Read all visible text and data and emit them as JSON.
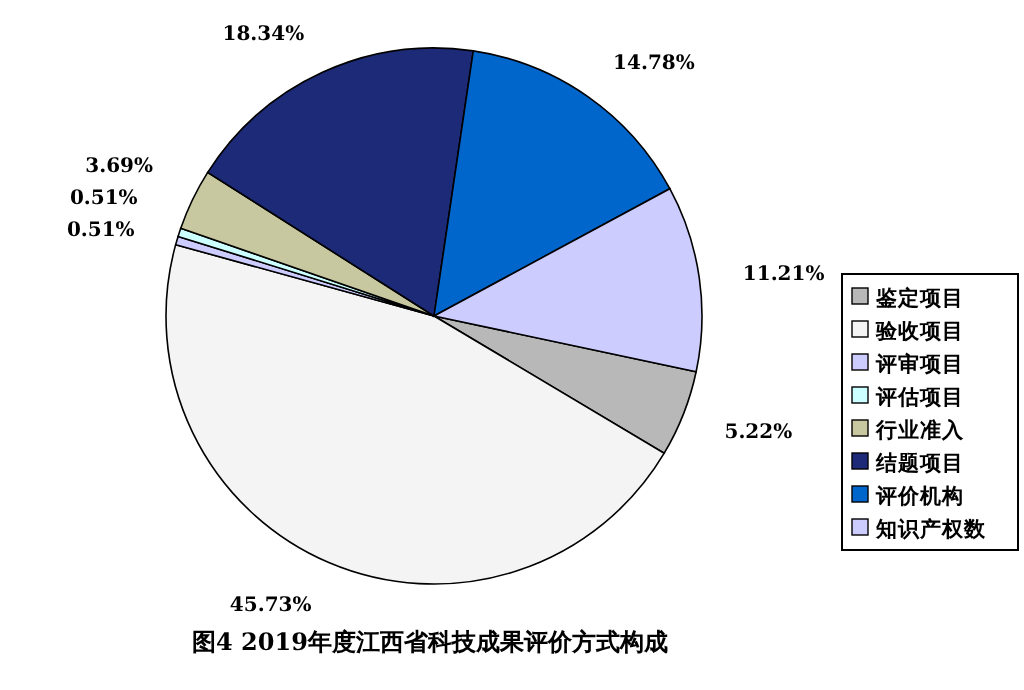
{
  "chart_data": {
    "type": "pie",
    "title": "图4  2019年度江西省科技成果评价方式构成",
    "categories": [
      "鉴定项目",
      "验收项目",
      "评审项目",
      "评估项目",
      "行业准入",
      "结题项目",
      "评价机构",
      "知识产权数"
    ],
    "values": [
      5.22,
      45.73,
      0.51,
      0.51,
      3.69,
      18.34,
      14.78,
      11.21
    ],
    "value_labels": [
      "5.22%",
      "45.73%",
      "0.51%",
      "0.51%",
      "3.69%",
      "18.34%",
      "14.78%",
      "11.21%"
    ],
    "colors": [
      "#b8b8b8",
      "#f4f4f4",
      "#ccccff",
      "#ccffff",
      "#c8c8a0",
      "#1c2a78",
      "#0066cc",
      "#ccccff"
    ],
    "legend": "right"
  }
}
